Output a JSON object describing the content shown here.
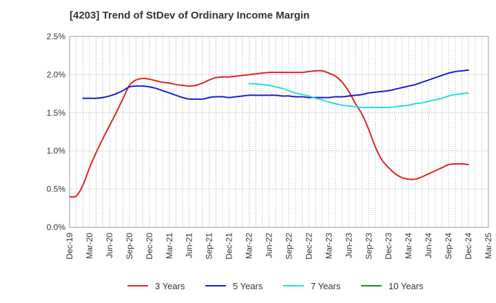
{
  "chart_data": {
    "type": "line",
    "title": "[4203]  Trend of StDev of Ordinary Income Margin",
    "xlabel": "",
    "ylabel": "",
    "ylim": [
      0,
      0.025
    ],
    "yticks": [
      {
        "value": 0.0,
        "label": "0.0%"
      },
      {
        "value": 0.005,
        "label": "0.5%"
      },
      {
        "value": 0.01,
        "label": "1.0%"
      },
      {
        "value": 0.015,
        "label": "1.5%"
      },
      {
        "value": 0.02,
        "label": "2.0%"
      },
      {
        "value": 0.025,
        "label": "2.5%"
      }
    ],
    "xticks": [
      "Dec-19",
      "Mar-20",
      "Jun-20",
      "Sep-20",
      "Dec-20",
      "Mar-21",
      "Jun-21",
      "Sep-21",
      "Dec-21",
      "Mar-22",
      "Jun-22",
      "Sep-22",
      "Dec-22",
      "Mar-23",
      "Jun-23",
      "Sep-23",
      "Dec-23",
      "Mar-24",
      "Jun-24",
      "Sep-24",
      "Dec-24",
      "Mar-25"
    ],
    "grid": true,
    "legend_position": "bottom",
    "series": [
      {
        "name": "3 Years",
        "color": "#dd2222",
        "points": [
          [
            "Dec-19",
            0.004
          ],
          [
            "Jan-20",
            0.0041
          ],
          [
            "Feb-20",
            0.0055
          ],
          [
            "Mar-20",
            0.0078
          ],
          [
            "Apr-20",
            0.0098
          ],
          [
            "May-20",
            0.0116
          ],
          [
            "Jun-20",
            0.0133
          ],
          [
            "Jul-20",
            0.015
          ],
          [
            "Aug-20",
            0.0168
          ],
          [
            "Sep-20",
            0.0186
          ],
          [
            "Oct-20",
            0.0193
          ],
          [
            "Nov-20",
            0.0195
          ],
          [
            "Dec-20",
            0.0194
          ],
          [
            "Jan-21",
            0.0192
          ],
          [
            "Feb-21",
            0.019
          ],
          [
            "Mar-21",
            0.0189
          ],
          [
            "Apr-21",
            0.0187
          ],
          [
            "May-21",
            0.0186
          ],
          [
            "Jun-21",
            0.0185
          ],
          [
            "Jul-21",
            0.0186
          ],
          [
            "Aug-21",
            0.0189
          ],
          [
            "Sep-21",
            0.0193
          ],
          [
            "Oct-21",
            0.0196
          ],
          [
            "Nov-21",
            0.0197
          ],
          [
            "Dec-21",
            0.0197
          ],
          [
            "Jan-22",
            0.0198
          ],
          [
            "Feb-22",
            0.0199
          ],
          [
            "Mar-22",
            0.02
          ],
          [
            "Apr-22",
            0.0201
          ],
          [
            "May-22",
            0.0202
          ],
          [
            "Jun-22",
            0.0203
          ],
          [
            "Jul-22",
            0.0203
          ],
          [
            "Aug-22",
            0.0203
          ],
          [
            "Sep-22",
            0.0203
          ],
          [
            "Oct-22",
            0.0203
          ],
          [
            "Nov-22",
            0.0203
          ],
          [
            "Dec-22",
            0.0204
          ],
          [
            "Jan-23",
            0.0205
          ],
          [
            "Feb-23",
            0.0205
          ],
          [
            "Mar-23",
            0.0202
          ],
          [
            "Apr-23",
            0.0198
          ],
          [
            "May-23",
            0.019
          ],
          [
            "Jun-23",
            0.0178
          ],
          [
            "Jul-23",
            0.0162
          ],
          [
            "Aug-23",
            0.0148
          ],
          [
            "Sep-23",
            0.0128
          ],
          [
            "Oct-23",
            0.0105
          ],
          [
            "Nov-23",
            0.0088
          ],
          [
            "Dec-23",
            0.0078
          ],
          [
            "Jan-24",
            0.007
          ],
          [
            "Feb-24",
            0.0065
          ],
          [
            "Mar-24",
            0.0063
          ],
          [
            "Apr-24",
            0.0063
          ],
          [
            "May-24",
            0.0066
          ],
          [
            "Jun-24",
            0.007
          ],
          [
            "Jul-24",
            0.0074
          ],
          [
            "Aug-24",
            0.0078
          ],
          [
            "Sep-24",
            0.0082
          ],
          [
            "Oct-24",
            0.0083
          ],
          [
            "Nov-24",
            0.0083
          ],
          [
            "Dec-24",
            0.0082
          ]
        ]
      },
      {
        "name": "5 Years",
        "color": "#1a1acc",
        "points": [
          [
            "Dec-19",
            null
          ],
          [
            "Jan-20",
            null
          ],
          [
            "Feb-20",
            0.0169
          ],
          [
            "Mar-20",
            0.0169
          ],
          [
            "Apr-20",
            0.0169
          ],
          [
            "May-20",
            0.017
          ],
          [
            "Jun-20",
            0.0172
          ],
          [
            "Jul-20",
            0.0175
          ],
          [
            "Aug-20",
            0.0179
          ],
          [
            "Sep-20",
            0.0184
          ],
          [
            "Oct-20",
            0.0185
          ],
          [
            "Nov-20",
            0.0185
          ],
          [
            "Dec-20",
            0.0184
          ],
          [
            "Jan-21",
            0.0182
          ],
          [
            "Feb-21",
            0.0179
          ],
          [
            "Mar-21",
            0.0176
          ],
          [
            "Apr-21",
            0.0173
          ],
          [
            "May-21",
            0.017
          ],
          [
            "Jun-21",
            0.0168
          ],
          [
            "Jul-21",
            0.0168
          ],
          [
            "Aug-21",
            0.0168
          ],
          [
            "Sep-21",
            0.017
          ],
          [
            "Oct-21",
            0.0171
          ],
          [
            "Nov-21",
            0.0171
          ],
          [
            "Dec-21",
            0.017
          ],
          [
            "Jan-22",
            0.0171
          ],
          [
            "Feb-22",
            0.0172
          ],
          [
            "Mar-22",
            0.0173
          ],
          [
            "Apr-22",
            0.0173
          ],
          [
            "May-22",
            0.0173
          ],
          [
            "Jun-22",
            0.0173
          ],
          [
            "Jul-22",
            0.0173
          ],
          [
            "Aug-22",
            0.0172
          ],
          [
            "Sep-22",
            0.0172
          ],
          [
            "Oct-22",
            0.0171
          ],
          [
            "Nov-22",
            0.0171
          ],
          [
            "Dec-22",
            0.017
          ],
          [
            "Jan-23",
            0.017
          ],
          [
            "Feb-23",
            0.017
          ],
          [
            "Mar-23",
            0.017
          ],
          [
            "Apr-23",
            0.0171
          ],
          [
            "May-23",
            0.0171
          ],
          [
            "Jun-23",
            0.0172
          ],
          [
            "Jul-23",
            0.0173
          ],
          [
            "Aug-23",
            0.0174
          ],
          [
            "Sep-23",
            0.0176
          ],
          [
            "Oct-23",
            0.0177
          ],
          [
            "Nov-23",
            0.0178
          ],
          [
            "Dec-23",
            0.0179
          ],
          [
            "Jan-24",
            0.0181
          ],
          [
            "Feb-24",
            0.0183
          ],
          [
            "Mar-24",
            0.0185
          ],
          [
            "Apr-24",
            0.0187
          ],
          [
            "May-24",
            0.019
          ],
          [
            "Jun-24",
            0.0193
          ],
          [
            "Jul-24",
            0.0196
          ],
          [
            "Aug-24",
            0.0199
          ],
          [
            "Sep-24",
            0.0202
          ],
          [
            "Oct-24",
            0.0204
          ],
          [
            "Nov-24",
            0.0205
          ],
          [
            "Dec-24",
            0.0206
          ]
        ]
      },
      {
        "name": "7 Years",
        "color": "#22dddd",
        "points": [
          [
            "Mar-22",
            0.0188
          ],
          [
            "Apr-22",
            0.0188
          ],
          [
            "May-22",
            0.0187
          ],
          [
            "Jun-22",
            0.0186
          ],
          [
            "Jul-22",
            0.0184
          ],
          [
            "Aug-22",
            0.0182
          ],
          [
            "Sep-22",
            0.0179
          ],
          [
            "Oct-22",
            0.0176
          ],
          [
            "Nov-22",
            0.0174
          ],
          [
            "Dec-22",
            0.0172
          ],
          [
            "Jan-23",
            0.0169
          ],
          [
            "Feb-23",
            0.0167
          ],
          [
            "Mar-23",
            0.0164
          ],
          [
            "Apr-23",
            0.0162
          ],
          [
            "May-23",
            0.016
          ],
          [
            "Jun-23",
            0.0159
          ],
          [
            "Jul-23",
            0.0158
          ],
          [
            "Aug-23",
            0.0157
          ],
          [
            "Sep-23",
            0.0157
          ],
          [
            "Oct-23",
            0.0157
          ],
          [
            "Nov-23",
            0.0157
          ],
          [
            "Dec-23",
            0.0157
          ],
          [
            "Jan-24",
            0.0158
          ],
          [
            "Feb-24",
            0.0159
          ],
          [
            "Mar-24",
            0.016
          ],
          [
            "Apr-24",
            0.0162
          ],
          [
            "May-24",
            0.0163
          ],
          [
            "Jun-24",
            0.0165
          ],
          [
            "Jul-24",
            0.0167
          ],
          [
            "Aug-24",
            0.0169
          ],
          [
            "Sep-24",
            0.0172
          ],
          [
            "Oct-24",
            0.0174
          ],
          [
            "Nov-24",
            0.0175
          ],
          [
            "Dec-24",
            0.0176
          ]
        ]
      },
      {
        "name": "10 Years",
        "color": "#228822",
        "points": []
      }
    ]
  }
}
